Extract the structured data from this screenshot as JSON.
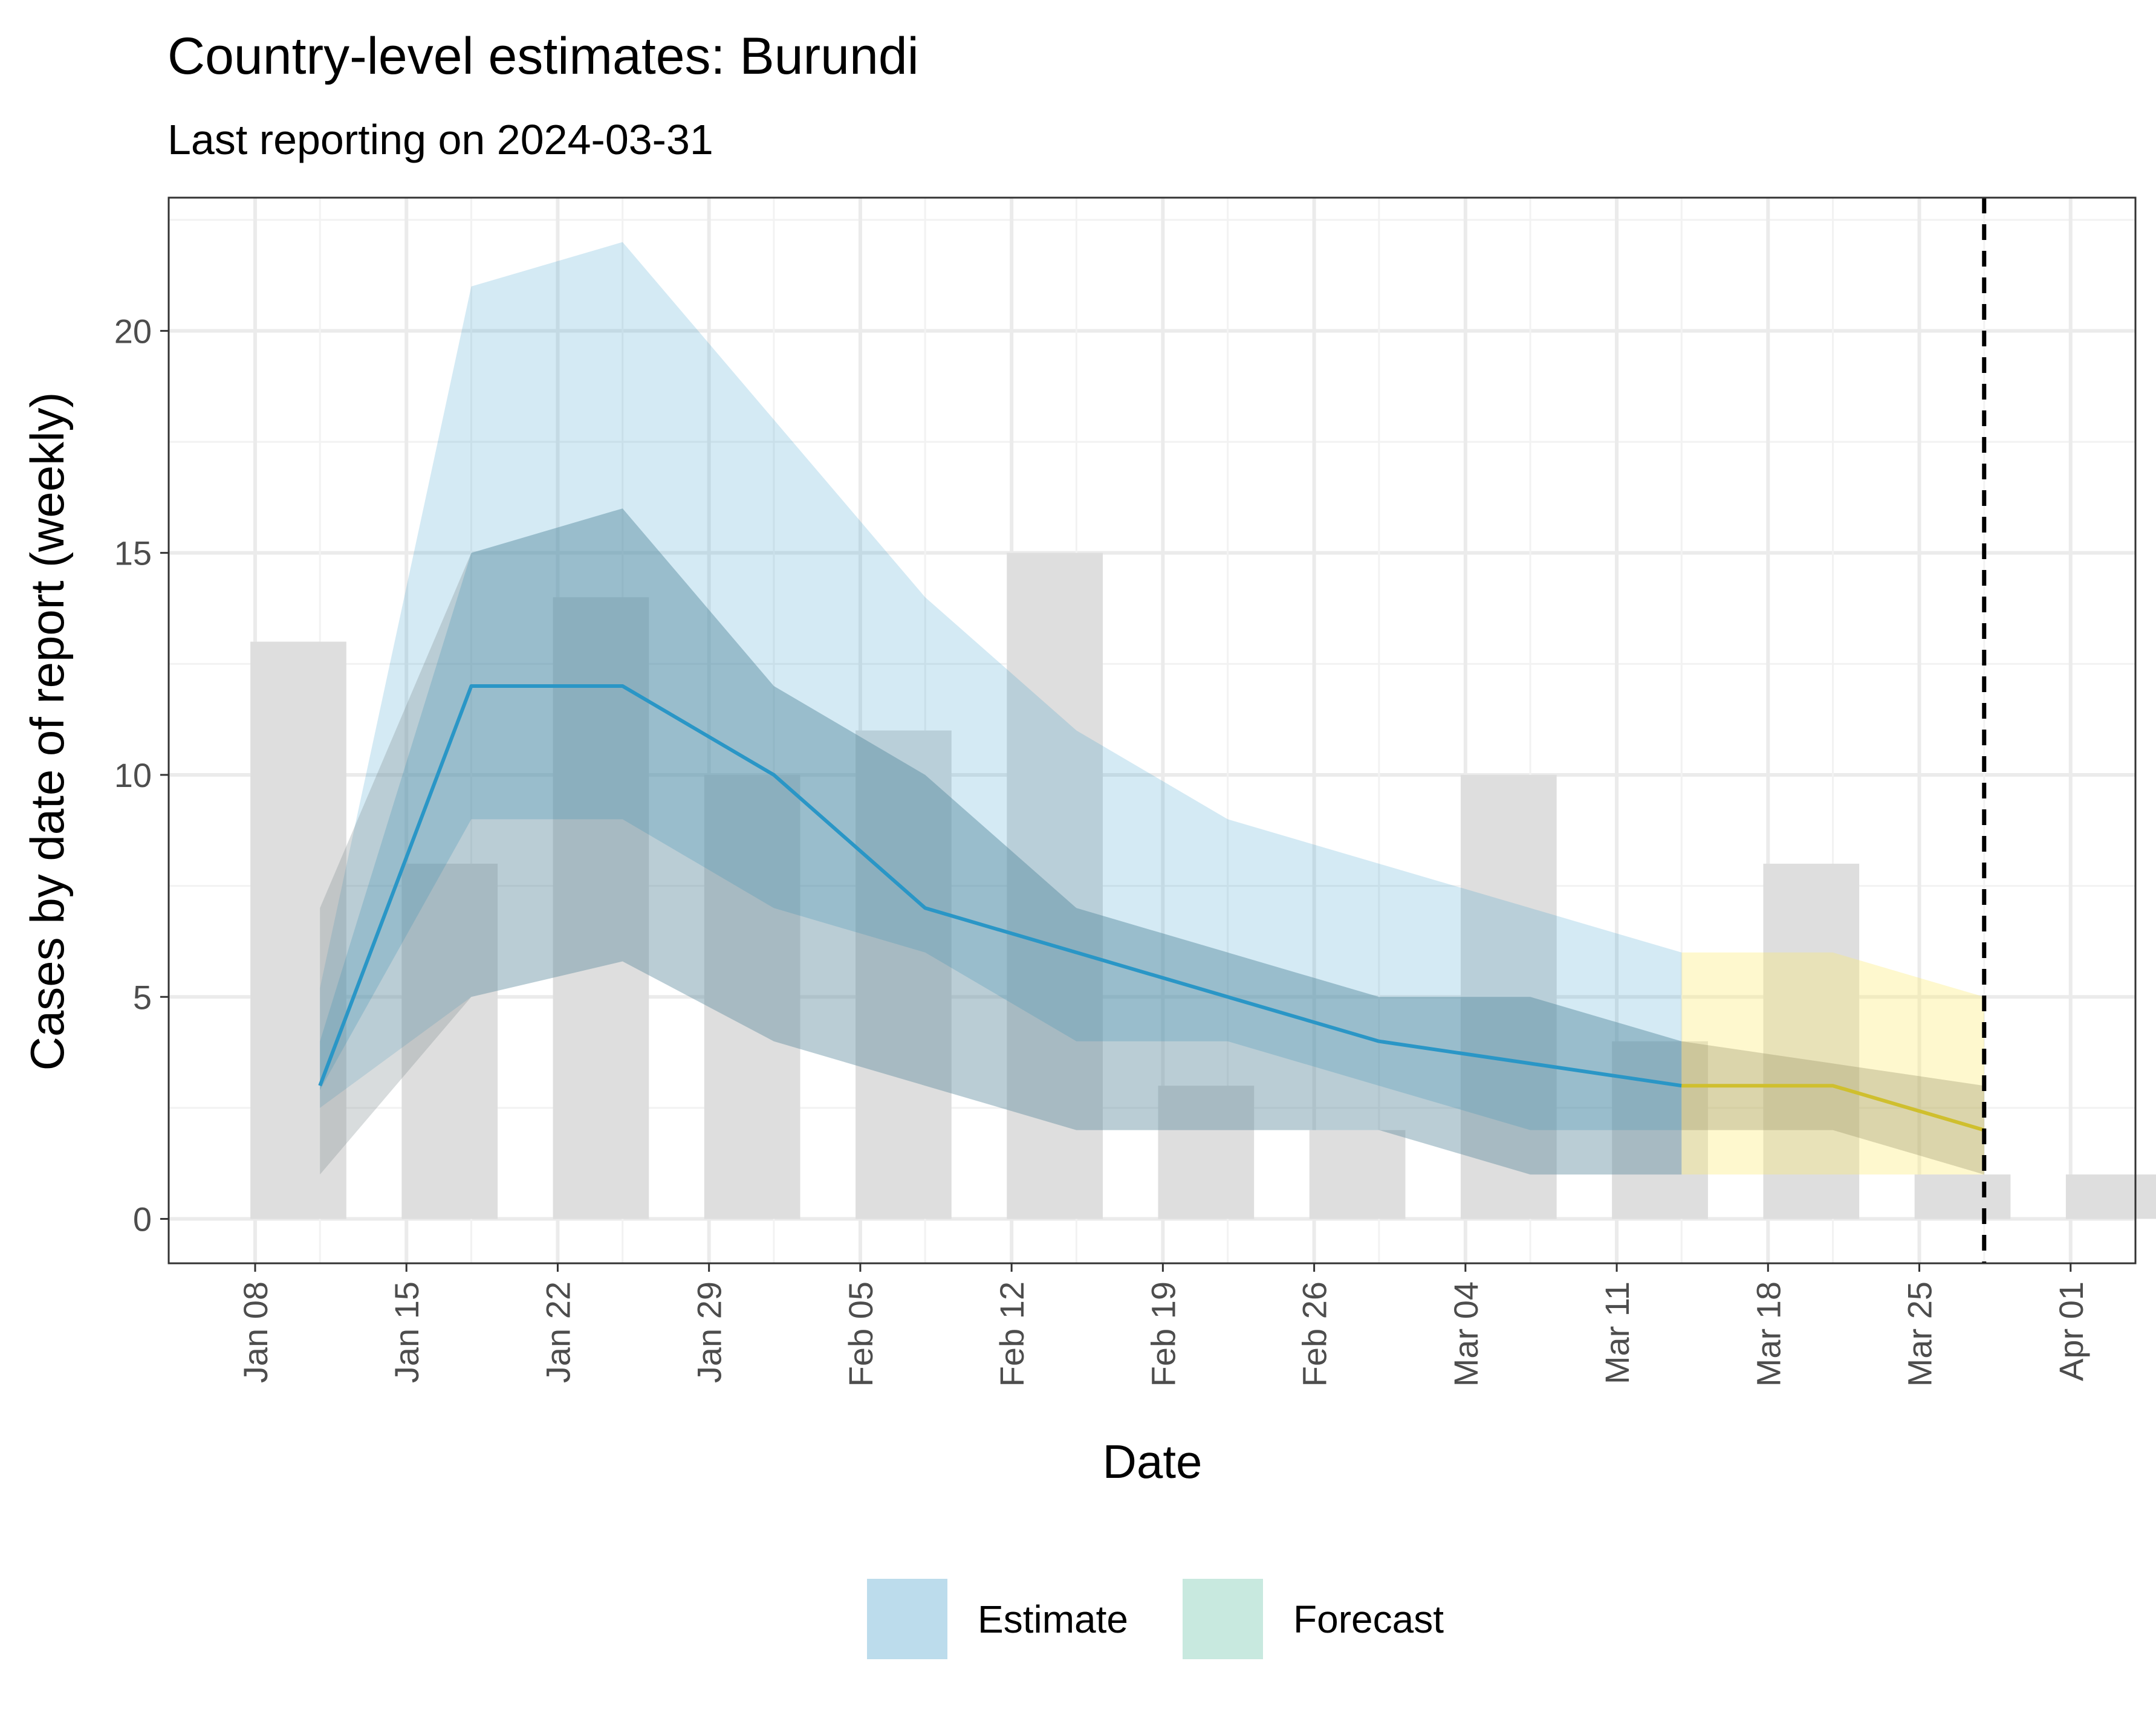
{
  "chart_data": {
    "type": "bar",
    "title": "Country-level estimates: Burundi",
    "subtitle": "Last reporting on 2024-03-31",
    "xlabel": "Date",
    "ylabel": "Cases by date of report (weekly)",
    "x_ticks": [
      "Jan 08",
      "Jan 15",
      "Jan 22",
      "Jan 29",
      "Feb 05",
      "Feb 12",
      "Feb 19",
      "Feb 26",
      "Mar 04",
      "Mar 11",
      "Mar 18",
      "Mar 25",
      "Apr 01"
    ],
    "y_ticks": [
      "0",
      "5",
      "10",
      "15",
      "20"
    ],
    "ylim": [
      -1,
      23
    ],
    "xlim": [
      "2024-01-04",
      "2024-04-04"
    ],
    "grid": true,
    "legend_position": "bottom",
    "bars": {
      "dates": [
        "2024-01-10",
        "2024-01-17",
        "2024-01-24",
        "2024-01-31",
        "2024-02-07",
        "2024-02-14",
        "2024-02-21",
        "2024-02-28",
        "2024-03-06",
        "2024-03-13",
        "2024-03-20",
        "2024-03-27",
        "2024-04-03"
      ],
      "values": [
        13,
        8,
        14,
        10,
        11,
        15,
        3,
        2,
        10,
        4,
        8,
        1,
        1
      ]
    },
    "series": [
      {
        "name": "Estimate",
        "kind": "estimate",
        "color": "#2a96c6",
        "points": [
          {
            "date": "2024-01-11",
            "median": 3,
            "lo50": 2.9,
            "hi50": 4,
            "lo90": 2.5,
            "hi90": 5.2,
            "lo_outer": 1,
            "hi_outer": 7
          },
          {
            "date": "2024-01-18",
            "median": 12,
            "lo50": 9,
            "hi50": 15,
            "lo90": 5,
            "hi90": 21,
            "lo_outer": 5,
            "hi_outer": 15
          },
          {
            "date": "2024-01-25",
            "median": 12,
            "lo50": 9,
            "hi50": 16,
            "lo90": 5.8,
            "hi90": 22,
            "lo_outer": 5.8,
            "hi_outer": 16
          },
          {
            "date": "2024-02-01",
            "median": 10,
            "lo50": 7,
            "hi50": 12,
            "lo90": 4,
            "hi90": 18,
            "lo_outer": 4,
            "hi_outer": 12
          },
          {
            "date": "2024-02-08",
            "median": 7,
            "lo50": 6,
            "hi50": 10,
            "lo90": 3,
            "hi90": 14,
            "lo_outer": 3,
            "hi_outer": 10
          },
          {
            "date": "2024-02-15",
            "median": 6,
            "lo50": 4,
            "hi50": 7,
            "lo90": 2,
            "hi90": 11,
            "lo_outer": 2,
            "hi_outer": 7
          },
          {
            "date": "2024-02-22",
            "median": 5,
            "lo50": 4,
            "hi50": 6,
            "lo90": 2,
            "hi90": 9,
            "lo_outer": 2,
            "hi_outer": 6
          },
          {
            "date": "2024-02-29",
            "median": 4,
            "lo50": 3,
            "hi50": 5,
            "lo90": 2,
            "hi90": 8,
            "lo_outer": 2,
            "hi_outer": 5
          },
          {
            "date": "2024-03-07",
            "median": 3.5,
            "lo50": 2,
            "hi50": 5,
            "lo90": 1,
            "hi90": 7,
            "lo_outer": 1,
            "hi_outer": 5
          },
          {
            "date": "2024-03-14",
            "median": 3,
            "lo50": 2,
            "hi50": 4,
            "lo90": 1,
            "hi90": 6,
            "lo_outer": 1,
            "hi_outer": 4
          }
        ]
      },
      {
        "name": "Forecast",
        "kind": "forecast",
        "color": "#cfbf2e",
        "points": [
          {
            "date": "2024-03-14",
            "median": 3,
            "lo50": 2,
            "hi50": 4,
            "lo90": 1,
            "hi90": 6
          },
          {
            "date": "2024-03-21",
            "median": 3,
            "lo50": 2,
            "hi50": 3.5,
            "lo90": 1,
            "hi90": 6
          },
          {
            "date": "2024-03-28",
            "median": 2,
            "lo50": 1,
            "hi50": 3,
            "lo90": 1,
            "hi90": 5
          }
        ]
      }
    ],
    "vline_date": "2024-03-28",
    "legend": [
      {
        "label": "Estimate",
        "color": "#bcdcec"
      },
      {
        "label": "Forecast",
        "color": "#c8e9df"
      }
    ]
  }
}
